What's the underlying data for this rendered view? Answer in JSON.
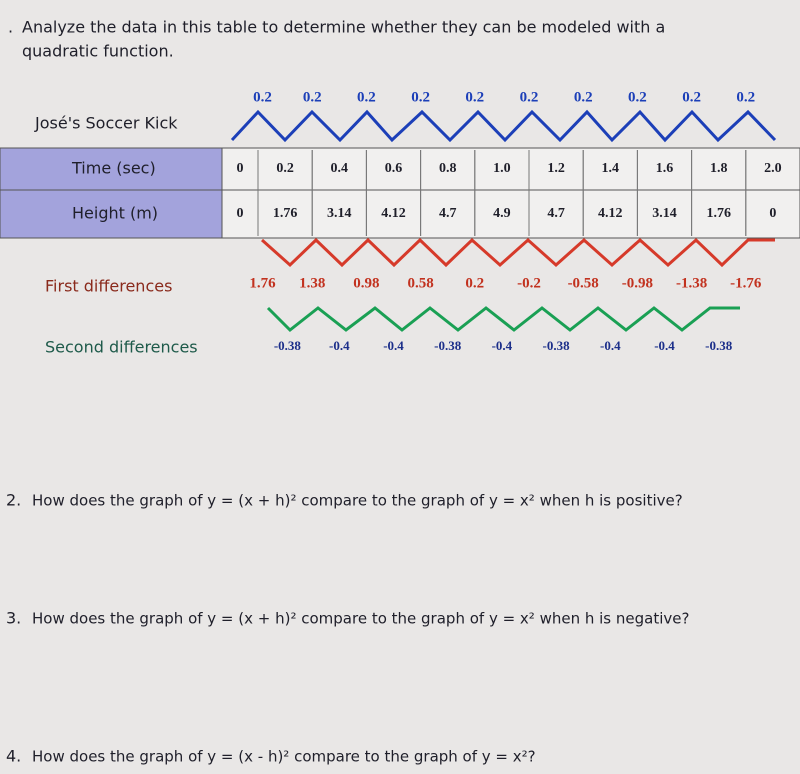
{
  "question1": {
    "number": ".",
    "lines": [
      "Analyze the data in this table to determine whether they can be modeled with a",
      "quadratic function."
    ]
  },
  "table": {
    "title": "José's Soccer Kick",
    "rows": [
      {
        "label": "Time (sec)",
        "values": [
          "0",
          "0.2",
          "0.4",
          "0.6",
          "0.8",
          "1.0",
          "1.2",
          "1.4",
          "1.6",
          "1.8",
          "2.0"
        ]
      },
      {
        "label": "Height (m)",
        "values": [
          "0",
          "1.76",
          "3.14",
          "4.12",
          "4.7",
          "4.9",
          "4.7",
          "4.12",
          "3.14",
          "1.76",
          "0"
        ]
      }
    ]
  },
  "time_differences": [
    "0.2",
    "0.2",
    "0.2",
    "0.2",
    "0.2",
    "0.2",
    "0.2",
    "0.2",
    "0.2",
    "0.2"
  ],
  "first_differences": {
    "label": "First differences",
    "values": [
      "1.76",
      "1.38",
      "0.98",
      "0.58",
      "0.2",
      "-0.2",
      "-0.58",
      "-0.98",
      "-1.38",
      "-1.76"
    ]
  },
  "second_differences": {
    "label": "Second differences",
    "values": [
      "-0.38",
      "-0.4",
      "-0.4",
      "-0.38",
      "-0.4",
      "-0.38",
      "-0.4",
      "-0.4",
      "-0.38"
    ]
  },
  "questions": [
    {
      "number": "2.",
      "text": "How does the graph of y = (x + h)² compare to the graph of y = x² when h is positive?"
    },
    {
      "number": "3.",
      "text": "How does the graph of y = (x + h)² compare to the graph of y = x² when h is negative?"
    },
    {
      "number": "4.",
      "text": "How does the graph of y = (x - h)² compare to the graph of y = x²?"
    }
  ]
}
